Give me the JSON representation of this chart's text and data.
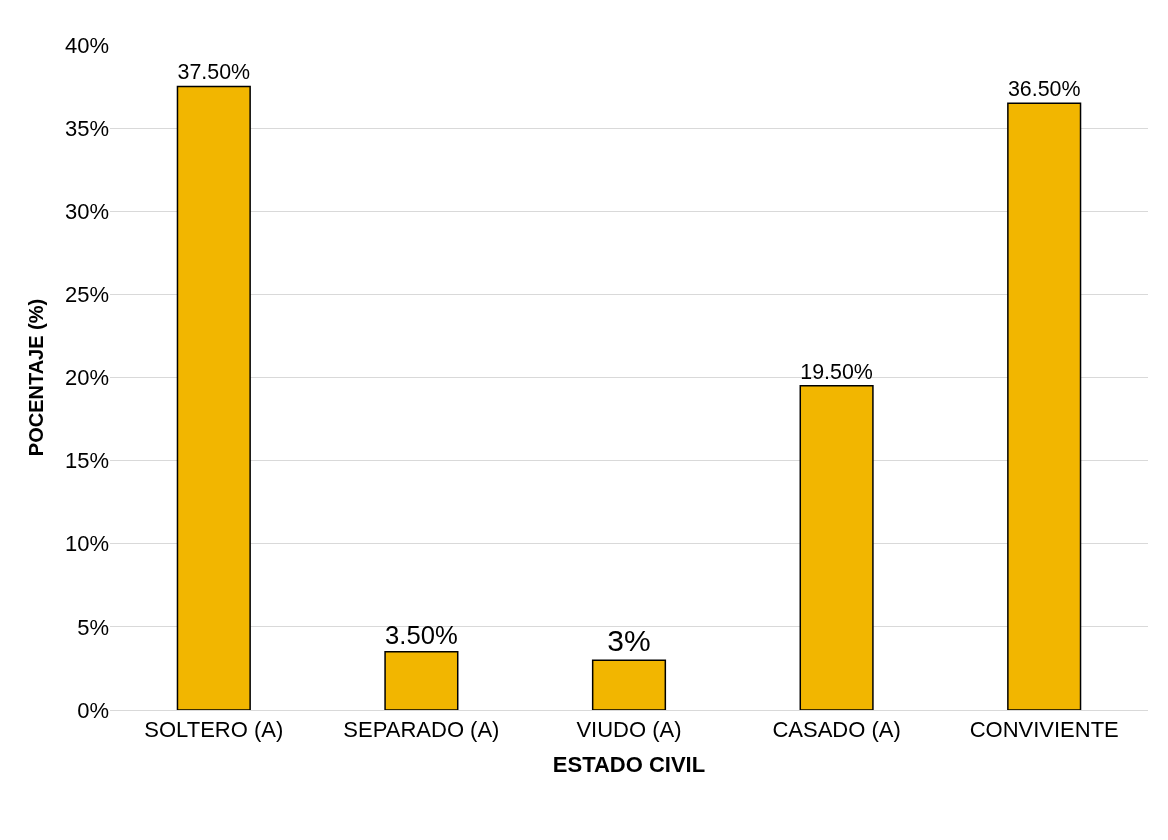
{
  "chart_data": {
    "type": "bar",
    "xlabel": "ESTADO CIVIL",
    "ylabel": "POCENTAJE (%)",
    "categories": [
      "SOLTERO (A)",
      "SEPARADO (A)",
      "VIUDO (A)",
      "CASADO (A)",
      "CONVIVIENTE"
    ],
    "values": [
      37.5,
      3.5,
      3,
      19.5,
      36.5
    ],
    "value_labels": [
      "37.50%",
      "3.50%",
      "3%",
      "19.50%",
      "36.50%"
    ],
    "color": "#f2b600",
    "ylim": [
      0,
      40
    ],
    "yticks": [
      {
        "value": 0,
        "label": "0%"
      },
      {
        "value": 5,
        "label": "5%"
      },
      {
        "value": 10,
        "label": "10%"
      },
      {
        "value": 15,
        "label": "15%"
      },
      {
        "value": 20,
        "label": "20%"
      },
      {
        "value": 25,
        "label": "25%"
      },
      {
        "value": 30,
        "label": "30%"
      },
      {
        "value": 35,
        "label": "35%"
      },
      {
        "value": 40,
        "label": "40%"
      }
    ],
    "grid": "y",
    "legend": false
  }
}
